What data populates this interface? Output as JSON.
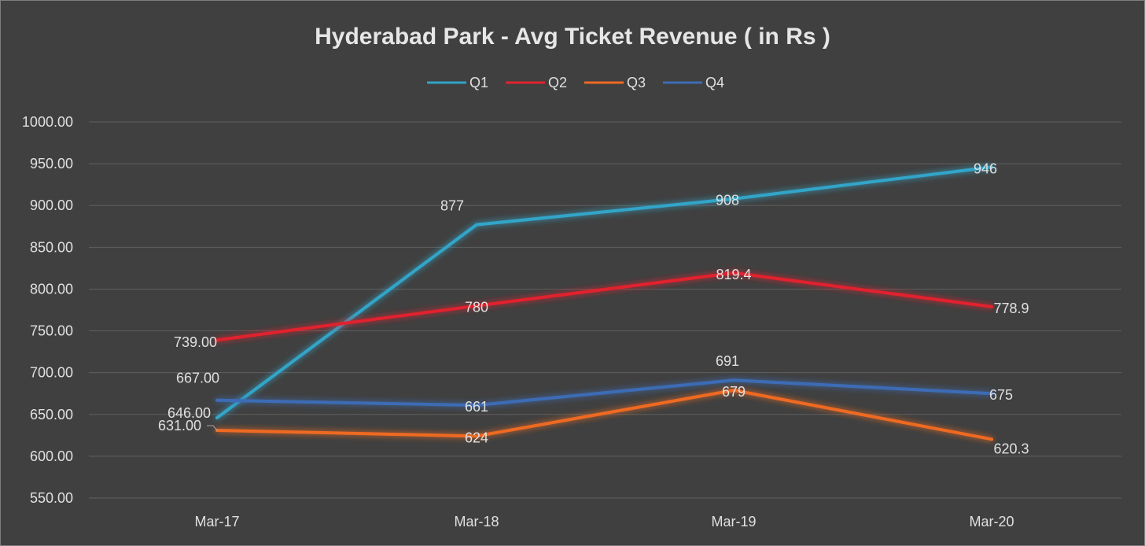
{
  "chart_data": {
    "type": "line",
    "title": "Hyderabad  Park - Avg Ticket Revenue ( in Rs )",
    "xlabel": "",
    "ylabel": "",
    "categories": [
      "Mar-17",
      "Mar-18",
      "Mar-19",
      "Mar-20"
    ],
    "ylim": [
      550,
      1000
    ],
    "ytick_step": 50,
    "ytick_labels": [
      "550.00",
      "600.00",
      "650.00",
      "700.00",
      "750.00",
      "800.00",
      "850.00",
      "900.00",
      "950.00",
      "1000.00"
    ],
    "grid": true,
    "legend_position": "top-center",
    "series": [
      {
        "name": "Q1",
        "color": "#31a5c8",
        "values": [
          646,
          877,
          908,
          946
        ],
        "labels": [
          "646.00",
          "877",
          "908",
          "946"
        ]
      },
      {
        "name": "Q2",
        "color": "#e0242f",
        "values": [
          739,
          780,
          819.4,
          778.9
        ],
        "labels": [
          "739.00",
          "780",
          "819.4",
          "778.9"
        ]
      },
      {
        "name": "Q3",
        "color": "#ee6a24",
        "values": [
          631,
          624,
          679,
          620.3
        ],
        "labels": [
          "631.00",
          "624",
          "679",
          "620.3"
        ]
      },
      {
        "name": "Q4",
        "color": "#3d6cb5",
        "values": [
          667,
          661,
          691,
          675
        ],
        "labels": [
          "667.00",
          "661",
          "691",
          "675"
        ]
      }
    ]
  }
}
